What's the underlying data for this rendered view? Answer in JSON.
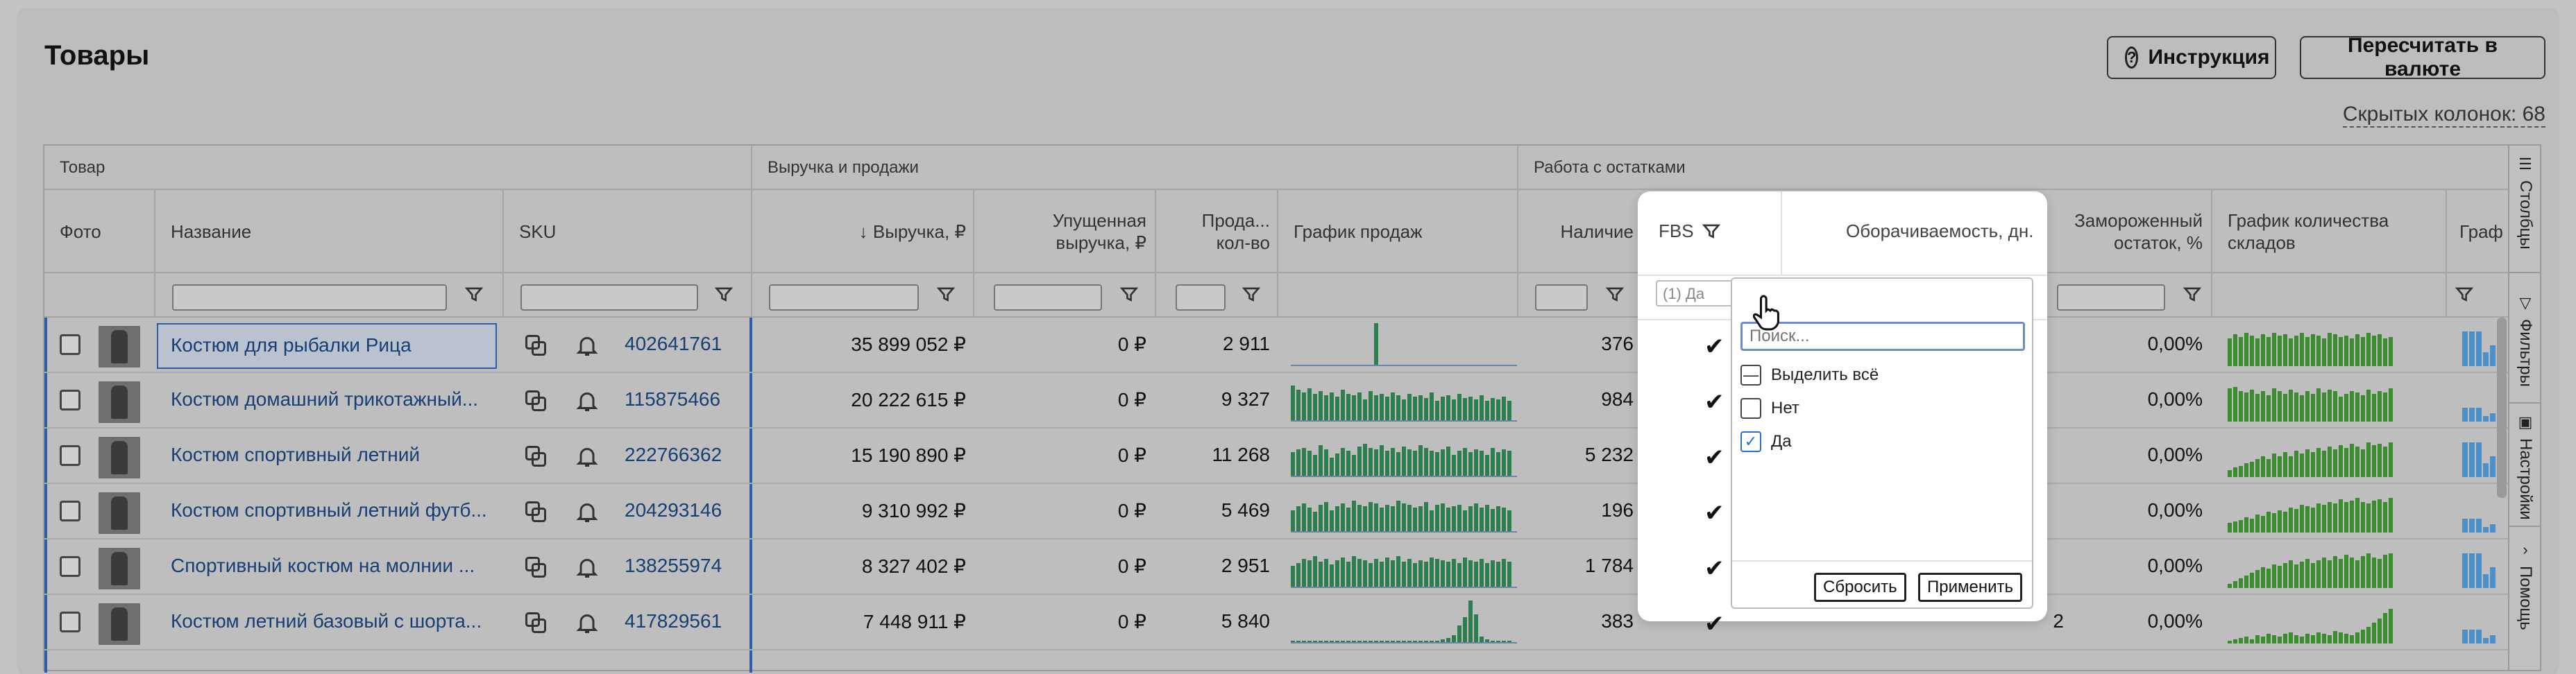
{
  "page": {
    "title": "Товары"
  },
  "toolbar": {
    "help_label": "Инструкция",
    "recalc_label": "Пересчитать в валюте",
    "hidden_columns": "Скрытых колонок: 68"
  },
  "groups": {
    "product": "Товар",
    "revenue": "Выручка и продажи",
    "stock": "Работа с остатками"
  },
  "columns": {
    "photo": "Фото",
    "name": "Название",
    "sku": "SKU",
    "revenue": "↓ Выручка, ₽",
    "lost_revenue": [
      "Упущенная",
      "выручка, ₽"
    ],
    "sales_qty": [
      "Прода...",
      "кол-во"
    ],
    "sales_chart": "График продаж",
    "stock": "Наличие",
    "fbs": "FBS",
    "turnover": "Оборачиваемость, дн.",
    "frozen": [
      "Замороженный",
      "остаток, %"
    ],
    "warehouses_chart": [
      "График количества",
      "складов"
    ],
    "more": "Графи"
  },
  "fbs_filter_value": "(1) Да",
  "rows": [
    {
      "name": "Костюм для рыбалки Рица",
      "sku": "402641761",
      "revenue": "35 899 052 ₽",
      "lost": "0 ₽",
      "qty": "2 911",
      "stock": "376",
      "frozen": "0,00%"
    },
    {
      "name": "Костюм домашний трикотажный...",
      "sku": "115875466",
      "revenue": "20 222 615 ₽",
      "lost": "0 ₽",
      "qty": "9 327",
      "stock": "984",
      "frozen": "0,00%"
    },
    {
      "name": "Костюм спортивный летний",
      "sku": "222766362",
      "revenue": "15 190 890 ₽",
      "lost": "0 ₽",
      "qty": "11 268",
      "stock": "5 232",
      "frozen": "0,00%"
    },
    {
      "name": "Костюм спортивный летний футб...",
      "sku": "204293146",
      "revenue": "9 310 992 ₽",
      "lost": "0 ₽",
      "qty": "5 469",
      "stock": "196",
      "frozen": "0,00%"
    },
    {
      "name": "Спортивный костюм на молнии ...",
      "sku": "138255974",
      "revenue": "8 327 402 ₽",
      "lost": "0 ₽",
      "qty": "2 951",
      "stock": "1 784",
      "frozen": "0,00%"
    },
    {
      "name": "Костюм летний базовый с шорта...",
      "sku": "417829561",
      "revenue": "7 448 911 ₽",
      "lost": "0 ₽",
      "qty": "5 840",
      "stock": "383",
      "frozen": "0,00%",
      "turnover": "2"
    }
  ],
  "dropdown": {
    "search_placeholder": "Поиск...",
    "select_all": "Выделить всё",
    "option_no": "Нет",
    "option_yes": "Да",
    "reset": "Сбросить",
    "apply": "Применить"
  },
  "sidebar": {
    "columns": "Столбцы",
    "filters": "Фильтры",
    "settings": "Настройки",
    "help": "Помощь"
  },
  "colors": {
    "link": "#173f73",
    "accent": "#2b5da8",
    "chart_green": "#2e7d4f",
    "chart_blue": "#4c8fc9"
  }
}
